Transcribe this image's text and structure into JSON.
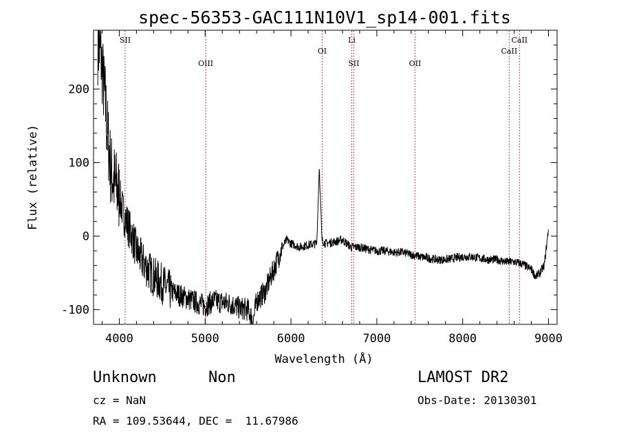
{
  "title": "spec-56353-GAC111N10V1_sp14-001.fits",
  "info": {
    "object_class": "Unknown",
    "subclass": "Non",
    "cz": "cz = NaN",
    "coords": "RA = 109.53644, DEC =  11.67986",
    "survey": "LAMOST DR2",
    "obs_date": "Obs-Date: 20130301"
  },
  "chart_data": {
    "type": "line",
    "title": "spec-56353-GAC111N10V1_sp14-001.fits",
    "xlabel": "Wavelength (Å)",
    "ylabel": "Flux (relative)",
    "xlim": [
      3700,
      9100
    ],
    "ylim": [
      -120,
      280
    ],
    "xticks": [
      4000,
      5000,
      6000,
      7000,
      8000,
      9000
    ],
    "yticks": [
      -100,
      0,
      100,
      200
    ],
    "line_color": "#000000",
    "marker_color": "#cc0000",
    "series": [
      {
        "x": [
          3750,
          3780,
          3800,
          3820,
          3840,
          3860,
          3880,
          3900,
          3950,
          4000,
          4050,
          4100,
          4150,
          4200,
          4300,
          4400,
          4500,
          4600,
          4700,
          4800,
          4900,
          5000,
          5100,
          5200,
          5300,
          5400,
          5500,
          5560,
          5600,
          5700,
          5800,
          5850,
          5900,
          5950,
          6000,
          6100,
          6200,
          6300,
          6330,
          6360,
          6400,
          6500,
          6600,
          6700,
          6800,
          6900,
          7000,
          7100,
          7200,
          7300,
          7400,
          7500,
          7600,
          7700,
          7800,
          7900,
          8000,
          8100,
          8200,
          8300,
          8400,
          8500,
          8600,
          8700,
          8750,
          8800,
          8850,
          8900,
          8950,
          9000
        ],
        "y": [
          260,
          250,
          230,
          200,
          180,
          140,
          120,
          90,
          70,
          55,
          30,
          15,
          0,
          -20,
          -40,
          -55,
          -65,
          -75,
          -80,
          -85,
          -90,
          -95,
          -88,
          -90,
          -92,
          -98,
          -100,
          -115,
          -88,
          -75,
          -45,
          -30,
          -15,
          -5,
          -10,
          -15,
          -12,
          -10,
          95,
          -5,
          -10,
          -8,
          -5,
          -15,
          -15,
          -18,
          -20,
          -20,
          -22,
          -22,
          -25,
          -28,
          -30,
          -32,
          -32,
          -30,
          -28,
          -28,
          -30,
          -32,
          -32,
          -35,
          -35,
          -38,
          -42,
          -45,
          -55,
          -50,
          -40,
          10
        ]
      }
    ],
    "spectral_lines": [
      {
        "label": "SII",
        "x": 4068,
        "label_row": "high"
      },
      {
        "label": "OIII",
        "x": 5007,
        "label_row": "low"
      },
      {
        "label": "OI",
        "x": 6363,
        "label_row": "mid"
      },
      {
        "label": "Li",
        "x": 6708,
        "label_row": "high"
      },
      {
        "label": "SII",
        "x": 6731,
        "label_row": "low"
      },
      {
        "label": "OII",
        "x": 7445,
        "label_row": "low"
      },
      {
        "label": "CaII",
        "x": 8542,
        "label_row": "mid"
      },
      {
        "label": "CaII",
        "x": 8662,
        "label_row": "high"
      }
    ]
  }
}
